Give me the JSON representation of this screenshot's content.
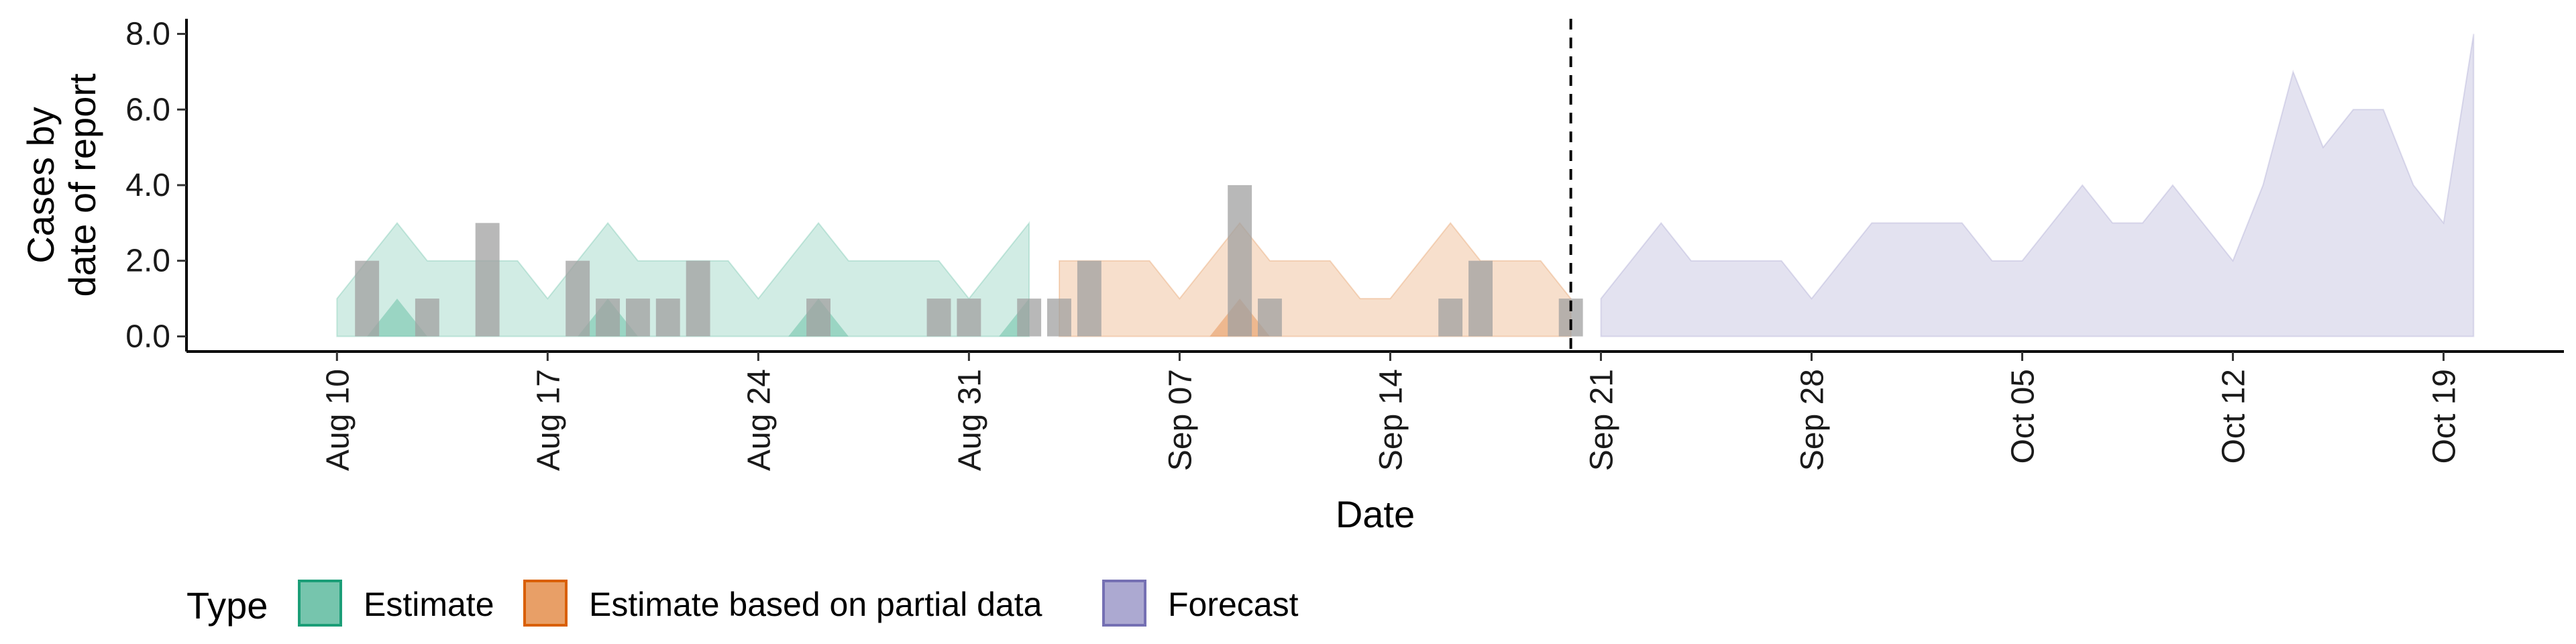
{
  "chart_data": {
    "type": "area",
    "xlabel": "Date",
    "ylabel": [
      "Cases by",
      "date of report"
    ],
    "x_range": [
      "2020-08-05",
      "2020-10-23"
    ],
    "ylim": [
      -0.4,
      8.4
    ],
    "y_ticks": [
      0,
      2,
      4,
      6,
      8
    ],
    "y_tick_labels": [
      "0.0",
      "2.0",
      "4.0",
      "6.0",
      "8.0"
    ],
    "x_ticks": [
      "2020-08-10",
      "2020-08-17",
      "2020-08-24",
      "2020-08-31",
      "2020-09-07",
      "2020-09-14",
      "2020-09-21",
      "2020-09-28",
      "2020-10-05",
      "2020-10-12",
      "2020-10-19"
    ],
    "x_tick_labels": [
      "Aug 10",
      "Aug 17",
      "Aug 24",
      "Aug 31",
      "Sep 07",
      "Sep 14",
      "Sep 21",
      "Sep 28",
      "Oct 05",
      "Oct 12",
      "Oct 19"
    ],
    "vline_date": "2020-09-20",
    "grid": false,
    "legend": {
      "title": "Type",
      "position": "bottom-left"
    },
    "series": [
      {
        "name": "Estimate",
        "color": "#1b9e77",
        "x": [
          "2020-08-10",
          "2020-08-11",
          "2020-08-12",
          "2020-08-13",
          "2020-08-14",
          "2020-08-15",
          "2020-08-16",
          "2020-08-17",
          "2020-08-18",
          "2020-08-19",
          "2020-08-20",
          "2020-08-21",
          "2020-08-22",
          "2020-08-23",
          "2020-08-24",
          "2020-08-25",
          "2020-08-26",
          "2020-08-27",
          "2020-08-28",
          "2020-08-29",
          "2020-08-30",
          "2020-08-31",
          "2020-09-01",
          "2020-09-02"
        ],
        "upper": [
          1,
          2,
          3,
          2,
          2,
          2,
          2,
          1,
          2,
          3,
          2,
          2,
          2,
          2,
          1,
          2,
          3,
          2,
          2,
          2,
          2,
          1,
          2,
          3
        ],
        "lower": [
          0,
          0,
          0,
          0,
          0,
          0,
          0,
          0,
          0,
          0,
          0,
          0,
          0,
          0,
          0,
          0,
          0,
          0,
          0,
          0,
          0,
          0,
          0,
          0
        ],
        "inner_upper": [
          0,
          0,
          1,
          0,
          0,
          0,
          0,
          0,
          0,
          1,
          0,
          0,
          0,
          0,
          0,
          0,
          1,
          0,
          0,
          0,
          0,
          0,
          0,
          1
        ]
      },
      {
        "name": "Estimate based on partial data",
        "color": "#d95f02",
        "x": [
          "2020-09-03",
          "2020-09-04",
          "2020-09-05",
          "2020-09-06",
          "2020-09-07",
          "2020-09-08",
          "2020-09-09",
          "2020-09-10",
          "2020-09-11",
          "2020-09-12",
          "2020-09-13",
          "2020-09-14",
          "2020-09-15",
          "2020-09-16",
          "2020-09-17",
          "2020-09-18",
          "2020-09-19",
          "2020-09-20"
        ],
        "upper": [
          2,
          2,
          2,
          2,
          1,
          2,
          3,
          2,
          2,
          2,
          1,
          1,
          2,
          3,
          2,
          2,
          2,
          1
        ],
        "lower": [
          0,
          0,
          0,
          0,
          0,
          0,
          0,
          0,
          0,
          0,
          0,
          0,
          0,
          0,
          0,
          0,
          0,
          0
        ],
        "inner_upper": [
          0,
          0,
          0,
          0,
          0,
          0,
          1,
          0,
          0,
          0,
          0,
          0,
          0,
          0,
          0,
          0,
          0,
          0
        ]
      },
      {
        "name": "Forecast",
        "color": "#7570b3",
        "x": [
          "2020-09-21",
          "2020-09-22",
          "2020-09-23",
          "2020-09-24",
          "2020-09-25",
          "2020-09-26",
          "2020-09-27",
          "2020-09-28",
          "2020-09-29",
          "2020-09-30",
          "2020-10-01",
          "2020-10-02",
          "2020-10-03",
          "2020-10-04",
          "2020-10-05",
          "2020-10-06",
          "2020-10-07",
          "2020-10-08",
          "2020-10-09",
          "2020-10-10",
          "2020-10-11",
          "2020-10-12",
          "2020-10-13",
          "2020-10-14",
          "2020-10-15",
          "2020-10-16",
          "2020-10-17",
          "2020-10-18",
          "2020-10-19",
          "2020-10-20"
        ],
        "upper": [
          1,
          2,
          3,
          2,
          2,
          2,
          2,
          1,
          2,
          3,
          3,
          3,
          3,
          2,
          2,
          3,
          4,
          3,
          3,
          4,
          3,
          2,
          4,
          7,
          5,
          6,
          6,
          4,
          3,
          8
        ],
        "lower": [
          0,
          0,
          0,
          0,
          0,
          0,
          0,
          0,
          0,
          0,
          0,
          0,
          0,
          0,
          0,
          0,
          0,
          0,
          0,
          0,
          0,
          0,
          0,
          0,
          0,
          0,
          0,
          0,
          0,
          0
        ]
      }
    ],
    "observed_bars": {
      "color": "#a0a0a0",
      "dates": [
        "2020-08-11",
        "2020-08-13",
        "2020-08-15",
        "2020-08-18",
        "2020-08-19",
        "2020-08-20",
        "2020-08-21",
        "2020-08-22",
        "2020-08-26",
        "2020-08-30",
        "2020-08-31",
        "2020-09-02",
        "2020-09-03",
        "2020-09-04",
        "2020-09-09",
        "2020-09-10",
        "2020-09-16",
        "2020-09-17",
        "2020-09-20"
      ],
      "values": [
        2,
        1,
        3,
        2,
        1,
        1,
        1,
        2,
        1,
        1,
        1,
        1,
        1,
        2,
        4,
        1,
        1,
        2,
        1
      ]
    }
  }
}
